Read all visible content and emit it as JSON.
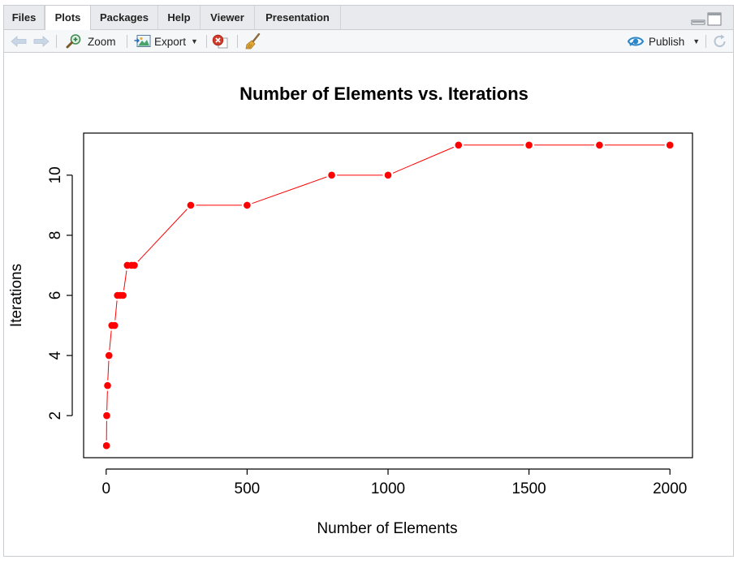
{
  "tabs": [
    {
      "label": "Files"
    },
    {
      "label": "Plots"
    },
    {
      "label": "Packages"
    },
    {
      "label": "Help"
    },
    {
      "label": "Viewer"
    },
    {
      "label": "Presentation"
    }
  ],
  "active_tab": "Plots",
  "toolbar": {
    "zoom_label": "Zoom",
    "export_label": "Export",
    "publish_label": "Publish"
  },
  "icons": {
    "back": "arrow-left-icon",
    "forward": "arrow-right-icon",
    "zoom": "magnifier-icon",
    "export": "export-image-icon",
    "remove": "remove-plot-icon",
    "clear": "broom-icon",
    "publish": "publish-icon",
    "refresh": "refresh-icon"
  },
  "colors": {
    "series": "#ff0000",
    "publish_accent": "#2a86c8"
  },
  "chart_data": {
    "type": "line",
    "title": "Number of Elements vs. Iterations",
    "xlabel": "Number of Elements",
    "ylabel": "Iterations",
    "x_ticks": [
      0,
      500,
      1000,
      1500,
      2000
    ],
    "y_ticks": [
      2,
      4,
      6,
      8,
      10
    ],
    "xlim": [
      -80,
      2080
    ],
    "ylim": [
      0.6,
      11.4
    ],
    "grid": false,
    "series": [
      {
        "marker": "filled-circle",
        "x": [
          1,
          2,
          5,
          10,
          20,
          30,
          40,
          50,
          60,
          75,
          90,
          100,
          300,
          500,
          800,
          1000,
          1250,
          1500,
          1750,
          2000
        ],
        "y": [
          1,
          2,
          3,
          4,
          5,
          5,
          6,
          6,
          6,
          7,
          7,
          7,
          9,
          9,
          10,
          10,
          11,
          11,
          11,
          11
        ]
      }
    ]
  }
}
